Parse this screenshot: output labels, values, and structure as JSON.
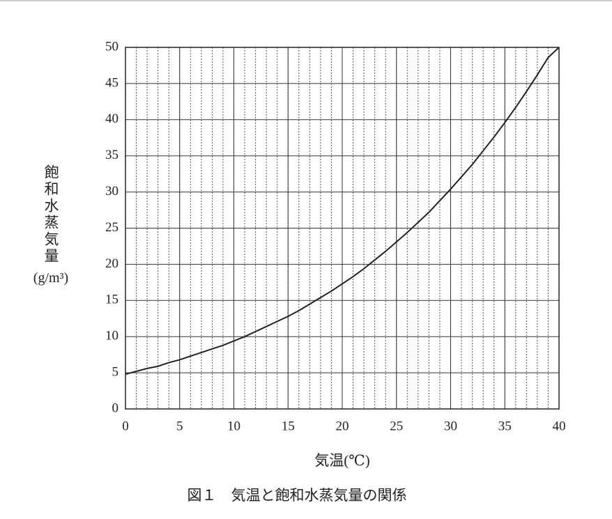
{
  "chart_data": {
    "type": "line",
    "ylabel": "飽和水蒸気量",
    "ylabel_unit": "(g/m³)",
    "xlabel": "気温(℃)",
    "caption": "図１　気温と飽和水蒸気量の関係",
    "x": [
      0,
      1,
      2,
      3,
      4,
      5,
      6,
      7,
      8,
      9,
      10,
      11,
      12,
      13,
      14,
      15,
      16,
      17,
      18,
      19,
      20,
      21,
      22,
      23,
      24,
      25,
      26,
      27,
      28,
      29,
      30,
      31,
      32,
      33,
      34,
      35,
      36,
      37,
      38,
      39,
      40
    ],
    "series": [
      {
        "name": "飽和水蒸気量",
        "color": "#222222",
        "values": [
          4.8,
          5.2,
          5.6,
          5.9,
          6.4,
          6.8,
          7.3,
          7.8,
          8.3,
          8.8,
          9.4,
          10.0,
          10.7,
          11.4,
          12.1,
          12.8,
          13.6,
          14.5,
          15.4,
          16.3,
          17.3,
          18.3,
          19.4,
          20.6,
          21.8,
          23.1,
          24.4,
          25.8,
          27.2,
          28.8,
          30.4,
          32.1,
          33.8,
          35.7,
          37.6,
          39.6,
          41.7,
          43.9,
          46.2,
          48.6,
          50
        ]
      }
    ],
    "xlim": [
      0,
      40
    ],
    "xticks": [
      0,
      5,
      10,
      15,
      20,
      25,
      30,
      35,
      40
    ],
    "ylim": [
      0,
      50
    ],
    "yticks": [
      0,
      5,
      10,
      15,
      20,
      25,
      30,
      35,
      40,
      45,
      50
    ],
    "grid": true,
    "minor_grid_step": 1
  }
}
